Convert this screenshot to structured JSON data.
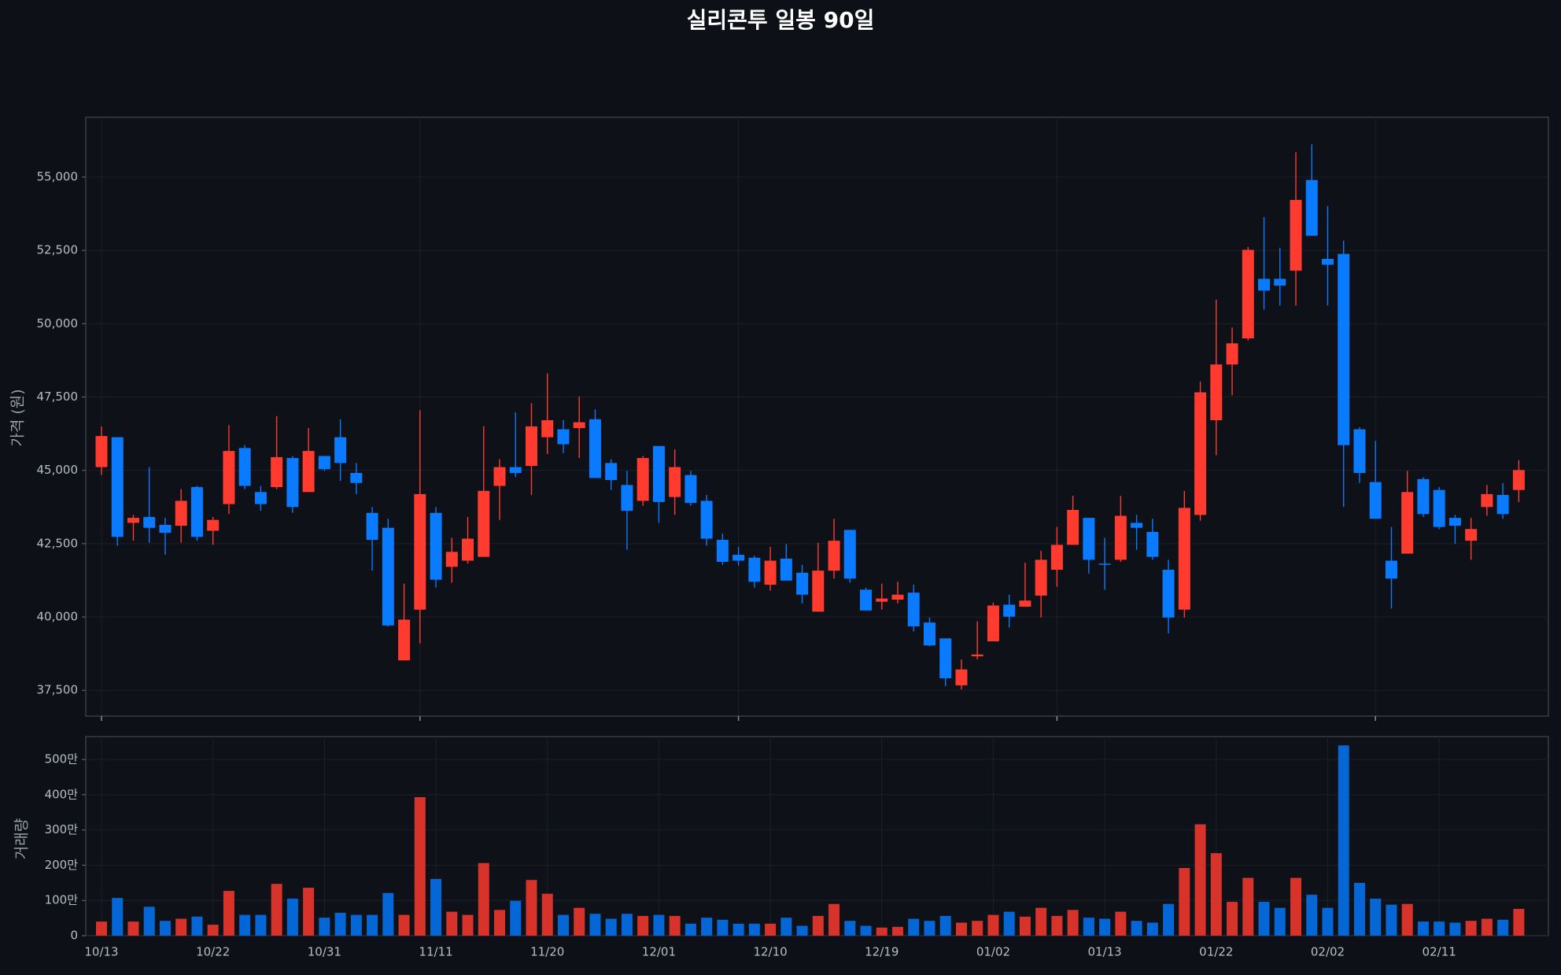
{
  "chart_data": {
    "type": "candlestick",
    "title": "실리콘투 일봉 90일",
    "ylabel": "가격 (원)",
    "volume_ylabel": "거래량",
    "up_color": "#ff3b30",
    "down_color": "#0a7aff",
    "volume_up_color": "#d8332b",
    "volume_down_color": "#0566d6",
    "grid": true,
    "categories": [
      "10/13",
      null,
      null,
      null,
      null,
      null,
      null,
      "10/22",
      null,
      null,
      null,
      null,
      null,
      null,
      "10/31",
      null,
      null,
      null,
      null,
      null,
      null,
      "11/11",
      null,
      null,
      null,
      null,
      null,
      null,
      "11/20",
      null,
      null,
      null,
      null,
      null,
      null,
      "12/01",
      null,
      null,
      null,
      null,
      null,
      null,
      "12/10",
      null,
      null,
      null,
      null,
      null,
      null,
      "12/19",
      null,
      null,
      null,
      null,
      null,
      null,
      "01/02",
      null,
      null,
      null,
      null,
      null,
      null,
      "01/13",
      null,
      null,
      null,
      null,
      null,
      null,
      "01/22",
      null,
      null,
      null,
      null,
      null,
      null,
      "02/02",
      null,
      null,
      null,
      null,
      null,
      null,
      "02/11",
      null,
      null,
      null,
      null,
      null
    ],
    "open": [
      45110,
      46130,
      43210,
      43410,
      43140,
      43110,
      44430,
      42940,
      43850,
      45760,
      44260,
      44430,
      45420,
      44260,
      45490,
      46130,
      44910,
      43550,
      43040,
      38520,
      40250,
      43550,
      41710,
      41920,
      42050,
      44470,
      45110,
      45150,
      46130,
      46400,
      46440,
      46740,
      45250,
      44500,
      43960,
      45830,
      44090,
      44840,
      43960,
      42630,
      42120,
      42020,
      41100,
      41990,
      41510,
      40180,
      41580,
      42970,
      40930,
      40520,
      40590,
      40830,
      39810,
      39270,
      37670,
      38660,
      39170,
      40420,
      40350,
      40730,
      41610,
      42460,
      43380,
      41820,
      41950,
      43210,
      42900,
      41610,
      40250,
      43480,
      46710,
      48610,
      49500,
      51530,
      51530,
      51810,
      54900,
      52210,
      52380,
      46400,
      44600,
      41920,
      42160,
      44700,
      44330,
      43380,
      42600,
      43750,
      44160,
      44330
    ],
    "high": [
      46500,
      46130,
      43480,
      45110,
      43380,
      44360,
      44470,
      43410,
      46540,
      45860,
      44470,
      46850,
      45490,
      46440,
      45490,
      46740,
      45250,
      43750,
      43350,
      41140,
      47050,
      43750,
      42700,
      43410,
      46500,
      45380,
      46980,
      47290,
      48310,
      46710,
      47520,
      47080,
      45380,
      44980,
      45490,
      45830,
      45720,
      44980,
      44160,
      42840,
      42390,
      42090,
      42390,
      42490,
      41780,
      42530,
      43350,
      42970,
      41000,
      41140,
      41200,
      41100,
      39980,
      39270,
      38550,
      39850,
      40490,
      40760,
      41850,
      42260,
      43070,
      44130,
      43380,
      42700,
      44130,
      43480,
      43350,
      41950,
      44300,
      48030,
      50820,
      49870,
      52620,
      53640,
      52590,
      55850,
      56120,
      54010,
      52830,
      46470,
      46000,
      43070,
      44980,
      44770,
      44430,
      43480,
      43380,
      44500,
      44570,
      45350
    ],
    "low": [
      44840,
      42430,
      42600,
      42530,
      42120,
      42530,
      42600,
      42460,
      43510,
      44360,
      43620,
      44360,
      43550,
      44260,
      44980,
      44640,
      44190,
      41580,
      39680,
      38520,
      39100,
      41000,
      41170,
      41820,
      42050,
      43310,
      44770,
      44160,
      45550,
      45590,
      45420,
      44740,
      44330,
      42290,
      43790,
      43210,
      43480,
      43790,
      42430,
      41780,
      41750,
      41000,
      40900,
      41240,
      40460,
      40180,
      41310,
      41170,
      40220,
      40250,
      40460,
      39510,
      39000,
      37640,
      37530,
      38550,
      39170,
      39640,
      40350,
      39980,
      41030,
      42460,
      41480,
      40930,
      41880,
      42290,
      41950,
      39440,
      39980,
      43280,
      45520,
      47560,
      49430,
      50480,
      50620,
      50620,
      53000,
      50620,
      43750,
      44570,
      43350,
      40290,
      42160,
      43410,
      43000,
      42490,
      41950,
      43450,
      43350,
      43920
    ],
    "close": [
      46170,
      42730,
      43380,
      43040,
      42870,
      43960,
      42730,
      43310,
      45660,
      44470,
      43850,
      45450,
      43750,
      45660,
      45040,
      45250,
      44570,
      42630,
      39710,
      39910,
      44190,
      41270,
      42220,
      42670,
      44300,
      45110,
      44910,
      46500,
      46710,
      45890,
      46640,
      44740,
      44670,
      43620,
      45420,
      43920,
      45110,
      43890,
      42670,
      41880,
      41920,
      41200,
      41920,
      41240,
      40760,
      41580,
      42600,
      41310,
      40220,
      40630,
      40760,
      39680,
      39030,
      37910,
      38210,
      38720,
      40390,
      40010,
      40560,
      41950,
      42460,
      43650,
      41950,
      41780,
      43450,
      43040,
      42050,
      39980,
      43720,
      47660,
      48610,
      49330,
      52520,
      51130,
      51300,
      54220,
      53000,
      52010,
      45860,
      44910,
      43350,
      41310,
      44260,
      43510,
      43070,
      43110,
      43000,
      44190,
      43510,
      45010
    ],
    "volume": [
      400000,
      1070000,
      400000,
      820000,
      420000,
      480000,
      540000,
      310000,
      1270000,
      590000,
      590000,
      1470000,
      1050000,
      1360000,
      510000,
      650000,
      590000,
      590000,
      1210000,
      590000,
      3930000,
      1610000,
      680000,
      590000,
      2060000,
      730000,
      990000,
      1580000,
      1190000,
      590000,
      790000,
      620000,
      480000,
      620000,
      560000,
      590000,
      560000,
      340000,
      510000,
      450000,
      340000,
      340000,
      340000,
      510000,
      280000,
      560000,
      900000,
      420000,
      280000,
      230000,
      250000,
      480000,
      420000,
      560000,
      370000,
      420000,
      590000,
      680000,
      540000,
      790000,
      560000,
      730000,
      510000,
      480000,
      680000,
      420000,
      370000,
      900000,
      1920000,
      3160000,
      2340000,
      960000,
      1640000,
      960000,
      790000,
      1640000,
      1160000,
      790000,
      5400000,
      1500000,
      1050000,
      880000,
      900000,
      400000,
      400000,
      370000,
      420000,
      480000,
      450000,
      760000
    ],
    "ylim": [
      36620,
      57040
    ],
    "yticks": [
      {
        "value": 37500,
        "label": "37,500"
      },
      {
        "value": 40000,
        "label": "40,000"
      },
      {
        "value": 42500,
        "label": "42,500"
      },
      {
        "value": 45000,
        "label": "45,000"
      },
      {
        "value": 47500,
        "label": "47,500"
      },
      {
        "value": 50000,
        "label": "50,000"
      },
      {
        "value": 52500,
        "label": "52,500"
      },
      {
        "value": 55000,
        "label": "55,000"
      }
    ],
    "volume_ylim": [
      0,
      5650000
    ],
    "volume_yticks": [
      0,
      {
        "value": 1000000,
        "label": "100만"
      },
      {
        "value": 2000000,
        "label": "200만"
      },
      {
        "value": 3000000,
        "label": "300만"
      },
      {
        "value": 4000000,
        "label": "400만"
      },
      {
        "value": 5000000,
        "label": "500만"
      }
    ]
  }
}
